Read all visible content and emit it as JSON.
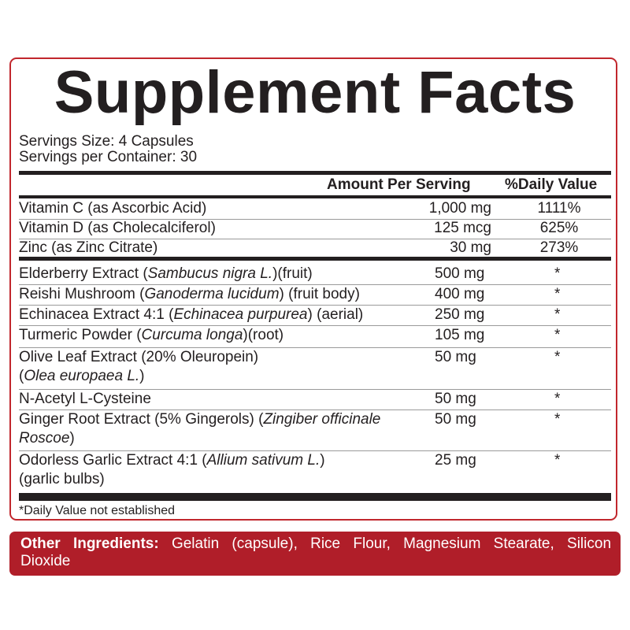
{
  "title": "Supplement Facts",
  "serving_size": "Servings Size: 4 Capsules",
  "servings_per_container": "Servings per Container: 30",
  "header": {
    "amount": "Amount Per Serving",
    "daily_value": "%Daily Value"
  },
  "vitamins": [
    {
      "name": "Vitamin C (as Ascorbic Acid)",
      "amount": "1,000 mg",
      "dv": "1111%"
    },
    {
      "name": "Vitamin D (as Cholecalciferol)",
      "amount": "125 mcg",
      "dv": "625%"
    },
    {
      "name": "Zinc (as Zinc Citrate)",
      "amount": "30 mg",
      "dv": "273%"
    }
  ],
  "blends": [
    {
      "line1": [
        {
          "t": "Elderberry Extract ("
        },
        {
          "t": "Sambucus nigra L.",
          "i": true
        },
        {
          "t": ")(fruit)"
        }
      ],
      "line2": [],
      "amount": "500 mg",
      "dv": "*"
    },
    {
      "line1": [
        {
          "t": "Reishi Mushroom ("
        },
        {
          "t": "Ganoderma lucidum",
          "i": true
        },
        {
          "t": ") (fruit body)"
        }
      ],
      "line2": [],
      "amount": "400 mg",
      "dv": "*"
    },
    {
      "line1": [
        {
          "t": "Echinacea Extract 4:1 ("
        },
        {
          "t": "Echinacea purpurea",
          "i": true
        },
        {
          "t": ") (aerial)"
        }
      ],
      "line2": [],
      "amount": "250 mg",
      "dv": "*"
    },
    {
      "line1": [
        {
          "t": "Turmeric Powder ("
        },
        {
          "t": "Curcuma longa",
          "i": true
        },
        {
          "t": ")(root)"
        }
      ],
      "line2": [],
      "amount": "105 mg",
      "dv": "*"
    },
    {
      "line1": [
        {
          "t": "Olive Leaf Extract (20% Oleuropein)"
        }
      ],
      "line2": [
        {
          "t": "("
        },
        {
          "t": "Olea europaea L.",
          "i": true
        },
        {
          "t": ")"
        }
      ],
      "amount": "50 mg",
      "dv": "*"
    },
    {
      "line1": [
        {
          "t": "N-Acetyl L-Cysteine"
        }
      ],
      "line2": [],
      "amount": "50 mg",
      "dv": "*"
    },
    {
      "line1": [
        {
          "t": "Ginger Root Extract (5% Gingerols) ("
        },
        {
          "t": "Zingiber officinale",
          "i": true
        }
      ],
      "line2": [
        {
          "t": "Roscoe",
          "i": true
        },
        {
          "t": ")"
        }
      ],
      "amount": "50 mg",
      "dv": "*"
    },
    {
      "line1": [
        {
          "t": "Odorless Garlic Extract 4:1 ("
        },
        {
          "t": "Allium sativum L.",
          "i": true
        },
        {
          "t": ")"
        }
      ],
      "line2": [
        {
          "t": "(garlic bulbs)"
        }
      ],
      "amount": "25 mg",
      "dv": "*"
    }
  ],
  "footnote": "*Daily Value not established",
  "other_ingredients": {
    "label": "Other Ingredients:",
    "text": " Gelatin (capsule), Rice Flour, Magnesium Stearate, Silicon Dioxide"
  },
  "colors": {
    "accent_red": "#b01e29",
    "border_red": "#c1272d",
    "text": "#231f20"
  }
}
